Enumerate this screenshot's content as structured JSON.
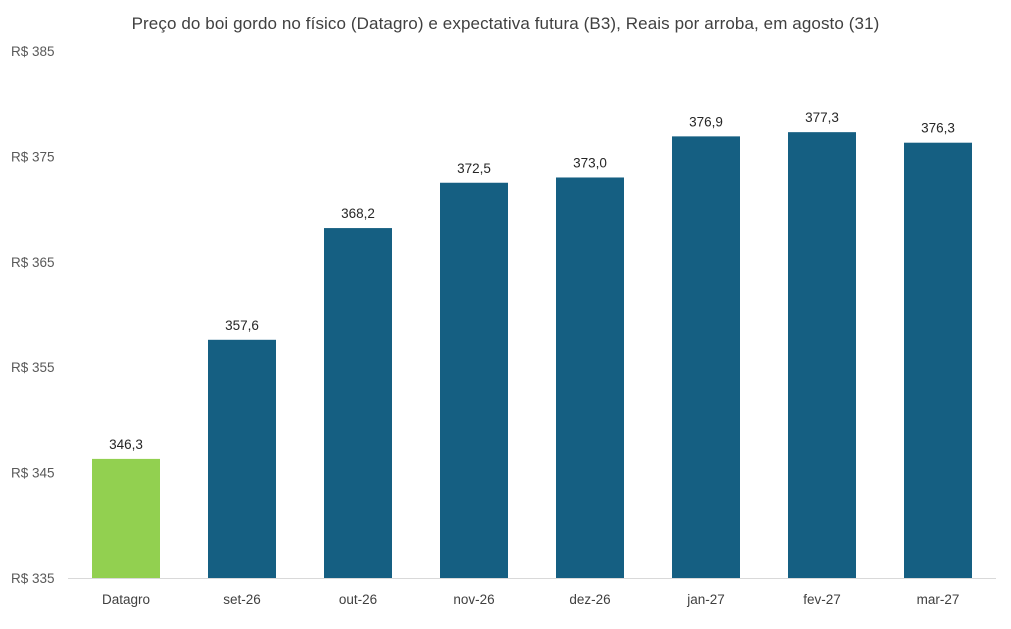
{
  "chart_data": {
    "type": "bar",
    "title": "Preço do boi gordo no físico (Datagro)  e expectativa futura (B3), Reais por arroba, em agosto (31)",
    "categories": [
      "Datagro",
      "set-26",
      "out-26",
      "nov-26",
      "dez-26",
      "jan-27",
      "fev-27",
      "mar-27"
    ],
    "values": [
      346.3,
      357.6,
      368.2,
      372.5,
      373.0,
      376.9,
      377.3,
      376.3
    ],
    "value_labels": [
      "346,3",
      "357,6",
      "368,2",
      "372,5",
      "373,0",
      "376,9",
      "377,3",
      "376,3"
    ],
    "bar_colors": [
      "#92d050",
      "#155f82",
      "#155f82",
      "#155f82",
      "#155f82",
      "#155f82",
      "#155f82",
      "#155f82"
    ],
    "ylim": [
      335,
      385
    ],
    "yticks": [
      335,
      345,
      355,
      365,
      375,
      385
    ],
    "ytick_labels": [
      "R$ 335",
      "R$ 345",
      "R$ 355",
      "R$ 365",
      "R$ 375",
      "R$ 385"
    ],
    "xlabel": "",
    "ylabel": "",
    "grid": false,
    "legend": "none"
  }
}
